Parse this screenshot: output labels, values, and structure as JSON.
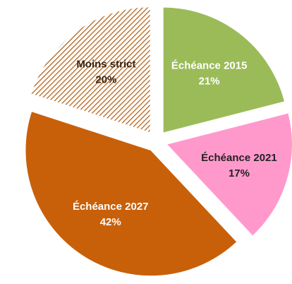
{
  "chart_data": {
    "type": "pie",
    "categories": [
      "Échéance 2015",
      "Échéance 2021",
      "Échéance 2027",
      "Moins strict"
    ],
    "values": [
      21,
      17,
      42,
      20
    ],
    "value_labels": [
      "21%",
      "17%",
      "42%",
      "20%"
    ],
    "colors": [
      "#9bbb59",
      "#ff99cc",
      "#c8600a",
      "#b5651d"
    ],
    "hatched": [
      false,
      false,
      false,
      true
    ]
  }
}
